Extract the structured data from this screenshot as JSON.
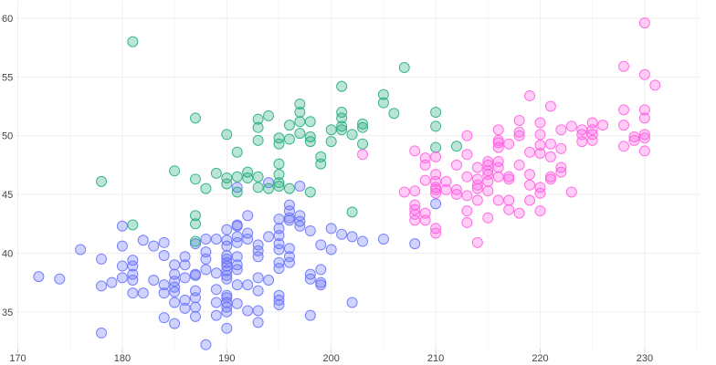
{
  "chart_data": {
    "type": "scatter",
    "title": "",
    "xlabel": "",
    "ylabel": "",
    "xlim": [
      169.8,
      235.3
    ],
    "ylim": [
      31.8,
      61.5
    ],
    "x_ticks": [
      170,
      180,
      190,
      200,
      210,
      220,
      230
    ],
    "x_tick_labels": [
      "170",
      "180",
      "190",
      "200",
      "210",
      "220",
      "230"
    ],
    "x_minor_ticks": [
      175,
      185,
      195,
      205,
      215,
      225,
      235
    ],
    "y_ticks": [
      35,
      40,
      45,
      50,
      55,
      60
    ],
    "y_tick_labels": [
      "35",
      "40",
      "45",
      "50",
      "55",
      "60"
    ],
    "grid": true,
    "legend": "none",
    "series": [
      {
        "color": "#636efa",
        "points": [
          [
            172,
            38.0
          ],
          [
            174,
            37.8
          ],
          [
            176,
            40.3
          ],
          [
            178,
            39.5
          ],
          [
            178,
            37.2
          ],
          [
            178,
            33.2
          ],
          [
            179,
            37.5
          ],
          [
            180,
            42.3
          ],
          [
            180,
            40.6
          ],
          [
            180,
            38.9
          ],
          [
            180,
            37.9
          ],
          [
            181,
            39.4
          ],
          [
            181,
            38.9
          ],
          [
            181,
            38.2
          ],
          [
            181,
            37.7
          ],
          [
            181,
            36.6
          ],
          [
            182,
            41.1
          ],
          [
            182,
            36.6
          ],
          [
            183,
            40.6
          ],
          [
            183,
            37.7
          ],
          [
            184,
            40.9
          ],
          [
            184,
            39.8
          ],
          [
            184,
            37.3
          ],
          [
            184,
            36.6
          ],
          [
            184,
            34.5
          ],
          [
            185,
            39.0
          ],
          [
            185,
            38.2
          ],
          [
            185,
            37.6
          ],
          [
            185,
            37.1
          ],
          [
            185,
            36.7
          ],
          [
            185,
            35.8
          ],
          [
            185,
            34.0
          ],
          [
            186,
            39.7
          ],
          [
            186,
            39.0
          ],
          [
            186,
            37.9
          ],
          [
            186,
            36.0
          ],
          [
            186,
            35.3
          ],
          [
            187,
            40.8
          ],
          [
            187,
            38.2
          ],
          [
            187,
            36.8
          ],
          [
            187,
            36.2
          ],
          [
            187,
            35.4
          ],
          [
            187,
            34.6
          ],
          [
            187,
            38.1
          ],
          [
            188,
            41.2
          ],
          [
            188,
            40.1
          ],
          [
            188,
            39.5
          ],
          [
            188,
            38.6
          ],
          [
            188,
            32.2
          ],
          [
            189,
            41.2
          ],
          [
            189,
            38.3
          ],
          [
            189,
            36.9
          ],
          [
            189,
            35.8
          ],
          [
            189,
            34.7
          ],
          [
            190,
            42.0
          ],
          [
            190,
            41.1
          ],
          [
            190,
            40.6
          ],
          [
            190,
            39.8
          ],
          [
            190,
            39.5
          ],
          [
            190,
            39.2
          ],
          [
            190,
            38.9
          ],
          [
            190,
            38.5
          ],
          [
            190,
            38.1
          ],
          [
            190,
            37.8
          ],
          [
            190,
            36.4
          ],
          [
            190,
            36.2
          ],
          [
            190,
            35.8
          ],
          [
            190,
            35.4
          ],
          [
            190,
            35.0
          ],
          [
            190,
            33.6
          ],
          [
            191,
            42.4
          ],
          [
            191,
            41.4
          ],
          [
            191,
            40.9
          ],
          [
            191,
            39.7
          ],
          [
            191,
            39.0
          ],
          [
            191,
            38.6
          ],
          [
            191,
            37.3
          ],
          [
            191,
            35.7
          ],
          [
            191,
            45.6
          ],
          [
            191,
            42.3
          ],
          [
            192,
            43.2
          ],
          [
            192,
            41.7
          ],
          [
            192,
            41.2
          ],
          [
            192,
            37.3
          ],
          [
            192,
            35.1
          ],
          [
            193,
            40.7
          ],
          [
            193,
            40.2
          ],
          [
            193,
            39.7
          ],
          [
            193,
            37.9
          ],
          [
            193,
            36.8
          ],
          [
            193,
            35.1
          ],
          [
            193,
            34.1
          ],
          [
            194,
            41.4
          ],
          [
            194,
            37.7
          ],
          [
            194,
            46.0
          ],
          [
            195,
            42.9
          ],
          [
            195,
            42.1
          ],
          [
            195,
            41.5
          ],
          [
            195,
            40.8
          ],
          [
            195,
            40.3
          ],
          [
            195,
            39.2
          ],
          [
            195,
            38.7
          ],
          [
            195,
            36.4
          ],
          [
            195,
            36.0
          ],
          [
            195,
            35.6
          ],
          [
            196,
            44.1
          ],
          [
            196,
            43.0
          ],
          [
            196,
            42.8
          ],
          [
            196,
            40.4
          ],
          [
            196,
            39.7
          ],
          [
            196,
            39.2
          ],
          [
            196,
            43.6
          ],
          [
            197,
            43.2
          ],
          [
            197,
            42.7
          ],
          [
            197,
            42.3
          ],
          [
            197,
            45.7
          ],
          [
            198,
            41.9
          ],
          [
            198,
            38.2
          ],
          [
            198,
            37.8
          ],
          [
            198,
            34.7
          ],
          [
            199,
            40.7
          ],
          [
            199,
            38.6
          ],
          [
            199,
            37.5
          ],
          [
            199,
            37.3
          ],
          [
            200,
            42.1
          ],
          [
            200,
            40.3
          ],
          [
            201,
            41.6
          ],
          [
            202,
            41.4
          ],
          [
            202,
            35.8
          ],
          [
            203,
            41.0
          ],
          [
            205,
            41.2
          ],
          [
            208,
            40.8
          ],
          [
            210,
            44.2
          ]
        ]
      },
      {
        "color": "#1faa7b",
        "points": [
          [
            181,
            58.0
          ],
          [
            187,
            51.5
          ],
          [
            190,
            50.1
          ],
          [
            193,
            51.4
          ],
          [
            193,
            50.7
          ],
          [
            193,
            49.6
          ],
          [
            194,
            51.7
          ],
          [
            195,
            49.8
          ],
          [
            195,
            49.3
          ],
          [
            196,
            50.9
          ],
          [
            196,
            49.7
          ],
          [
            197,
            52.7
          ],
          [
            197,
            52.0
          ],
          [
            197,
            51.2
          ],
          [
            197,
            50.2
          ],
          [
            198,
            51.2
          ],
          [
            198,
            49.9
          ],
          [
            198,
            49.5
          ],
          [
            200,
            50.5
          ],
          [
            200,
            49.5
          ],
          [
            201,
            54.2
          ],
          [
            201,
            52.0
          ],
          [
            201,
            51.5
          ],
          [
            201,
            50.8
          ],
          [
            201,
            50.5
          ],
          [
            202,
            50.1
          ],
          [
            203,
            51.0
          ],
          [
            203,
            50.7
          ],
          [
            203,
            49.3
          ],
          [
            205,
            53.5
          ],
          [
            205,
            52.8
          ],
          [
            206,
            51.9
          ],
          [
            207,
            55.8
          ],
          [
            178,
            46.1
          ],
          [
            185,
            47.0
          ],
          [
            187,
            46.3
          ],
          [
            188,
            45.5
          ],
          [
            189,
            46.8
          ],
          [
            190,
            46.4
          ],
          [
            190,
            45.9
          ],
          [
            191,
            46.5
          ],
          [
            191,
            48.6
          ],
          [
            191,
            45.2
          ],
          [
            192,
            46.9
          ],
          [
            192,
            46.4
          ],
          [
            193,
            46.5
          ],
          [
            193,
            45.6
          ],
          [
            194,
            45.5
          ],
          [
            195,
            47.6
          ],
          [
            195,
            46.7
          ],
          [
            195,
            46.0
          ],
          [
            195,
            45.7
          ],
          [
            196,
            45.5
          ],
          [
            198,
            45.2
          ],
          [
            199,
            48.2
          ],
          [
            199,
            47.6
          ],
          [
            202,
            43.5
          ],
          [
            187,
            43.2
          ],
          [
            187,
            42.5
          ],
          [
            187,
            41.0
          ],
          [
            181,
            42.4
          ],
          [
            210,
            52.0
          ],
          [
            210,
            50.8
          ],
          [
            210,
            49.0
          ],
          [
            212,
            49.1
          ]
        ]
      },
      {
        "color": "#ff5be0",
        "points": [
          [
            203,
            48.4
          ],
          [
            207,
            45.2
          ],
          [
            208,
            48.7
          ],
          [
            208,
            45.3
          ],
          [
            208,
            44.1
          ],
          [
            208,
            43.7
          ],
          [
            208,
            43.3
          ],
          [
            208,
            42.8
          ],
          [
            209,
            48.1
          ],
          [
            209,
            47.5
          ],
          [
            209,
            46.2
          ],
          [
            209,
            43.4
          ],
          [
            209,
            42.8
          ],
          [
            210,
            48.2
          ],
          [
            210,
            46.7
          ],
          [
            210,
            46.1
          ],
          [
            210,
            45.6
          ],
          [
            210,
            45.4
          ],
          [
            210,
            45.1
          ],
          [
            210,
            42.1
          ],
          [
            210,
            41.7
          ],
          [
            211,
            46.1
          ],
          [
            211,
            45.4
          ],
          [
            212,
            47.5
          ],
          [
            212,
            45.4
          ],
          [
            212,
            45.0
          ],
          [
            213,
            50.0
          ],
          [
            213,
            48.4
          ],
          [
            213,
            46.5
          ],
          [
            213,
            44.9
          ],
          [
            213,
            43.6
          ],
          [
            213,
            42.6
          ],
          [
            214,
            47.3
          ],
          [
            214,
            46.3
          ],
          [
            214,
            45.8
          ],
          [
            214,
            45.5
          ],
          [
            214,
            44.5
          ],
          [
            214,
            40.9
          ],
          [
            215,
            47.8
          ],
          [
            215,
            47.5
          ],
          [
            215,
            47.0
          ],
          [
            215,
            46.7
          ],
          [
            215,
            46.1
          ],
          [
            215,
            45.3
          ],
          [
            215,
            43.0
          ],
          [
            216,
            50.5
          ],
          [
            216,
            49.6
          ],
          [
            216,
            49.4
          ],
          [
            216,
            49.0
          ],
          [
            216,
            47.8
          ],
          [
            216,
            47.3
          ],
          [
            216,
            46.5
          ],
          [
            216,
            44.5
          ],
          [
            217,
            49.3
          ],
          [
            217,
            46.5
          ],
          [
            217,
            46.3
          ],
          [
            217,
            44.5
          ],
          [
            217,
            43.7
          ],
          [
            218,
            51.3
          ],
          [
            218,
            50.3
          ],
          [
            218,
            50.0
          ],
          [
            218,
            47.5
          ],
          [
            218,
            43.4
          ],
          [
            219,
            53.4
          ],
          [
            219,
            48.6
          ],
          [
            219,
            46.7
          ],
          [
            219,
            45.8
          ],
          [
            219,
            44.5
          ],
          [
            220,
            51.1
          ],
          [
            220,
            50.1
          ],
          [
            220,
            49.2
          ],
          [
            220,
            48.5
          ],
          [
            220,
            45.6
          ],
          [
            220,
            45.1
          ],
          [
            220,
            43.6
          ],
          [
            221,
            52.5
          ],
          [
            221,
            49.3
          ],
          [
            221,
            48.2
          ],
          [
            221,
            46.5
          ],
          [
            221,
            46.3
          ],
          [
            222,
            50.5
          ],
          [
            222,
            48.9
          ],
          [
            222,
            47.3
          ],
          [
            222,
            46.9
          ],
          [
            223,
            50.8
          ],
          [
            223,
            45.2
          ],
          [
            224,
            50.5
          ],
          [
            224,
            50.1
          ],
          [
            224,
            49.5
          ],
          [
            225,
            51.1
          ],
          [
            225,
            50.5
          ],
          [
            225,
            50.1
          ],
          [
            225,
            49.6
          ],
          [
            226,
            50.9
          ],
          [
            228,
            55.9
          ],
          [
            228,
            52.2
          ],
          [
            228,
            50.9
          ],
          [
            228,
            49.1
          ],
          [
            229,
            49.9
          ],
          [
            229,
            49.6
          ],
          [
            230,
            59.6
          ],
          [
            230,
            55.2
          ],
          [
            230,
            52.2
          ],
          [
            230,
            51.5
          ],
          [
            230,
            50.1
          ],
          [
            230,
            49.8
          ],
          [
            230,
            48.7
          ],
          [
            231,
            54.3
          ]
        ]
      }
    ]
  }
}
